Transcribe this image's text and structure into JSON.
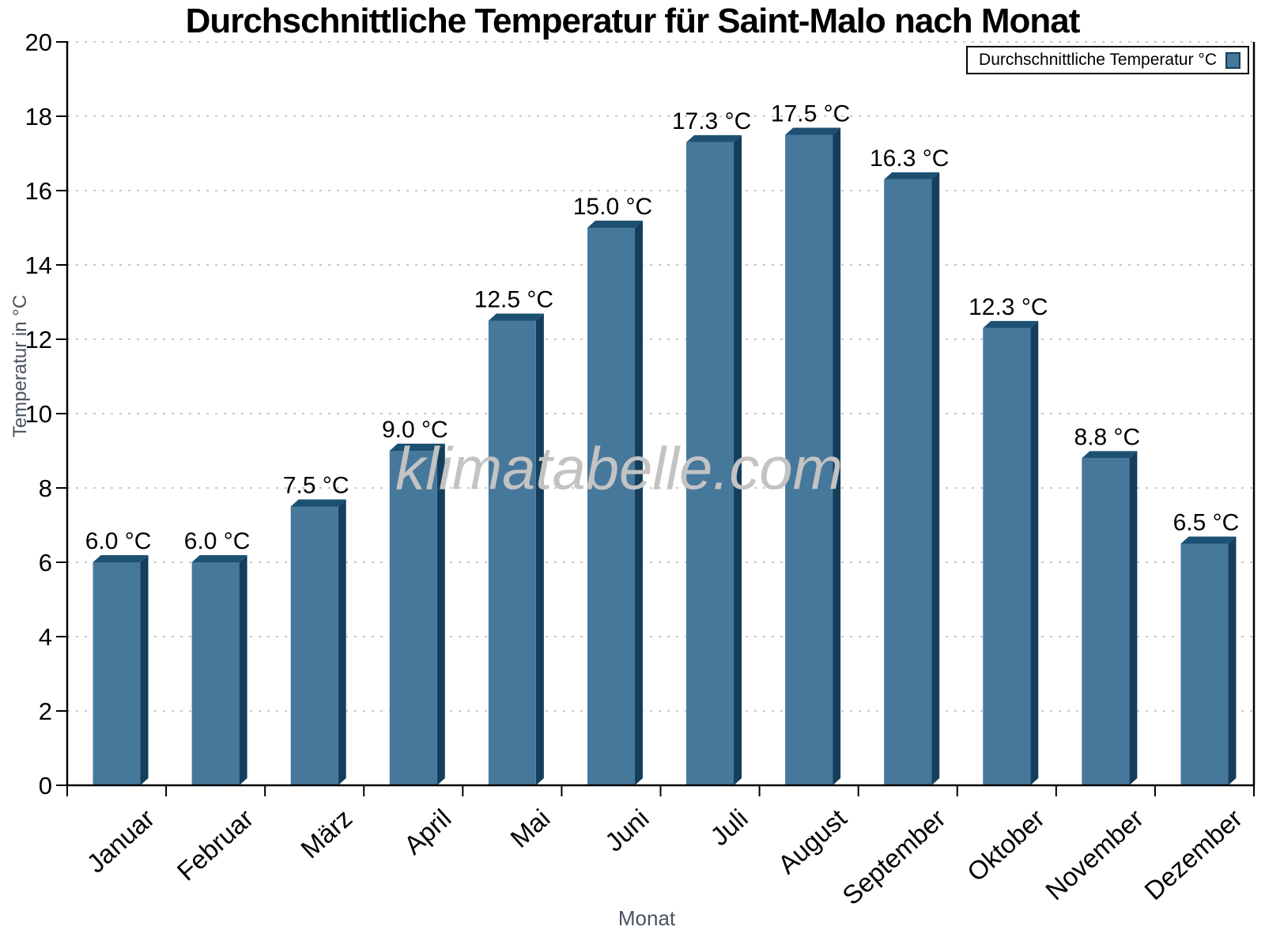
{
  "title": "Durchschnittliche Temperatur für Saint-Malo nach Monat",
  "watermark": "klimatabelle.com",
  "legend": {
    "label": "Durchschnittliche Temperatur °C"
  },
  "axes": {
    "x_label": "Monat",
    "y_label": "Temperatur in °C"
  },
  "chart_data": {
    "type": "bar",
    "title": "Durchschnittliche Temperatur für Saint-Malo nach Monat",
    "categories": [
      "Januar",
      "Februar",
      "März",
      "April",
      "Mai",
      "Juni",
      "Juli",
      "August",
      "September",
      "Oktober",
      "November",
      "Dezember"
    ],
    "values": [
      6.0,
      6.0,
      7.5,
      9.0,
      12.5,
      15.0,
      17.3,
      17.5,
      16.3,
      12.3,
      8.8,
      6.5
    ],
    "value_labels": [
      "6.0 °C",
      "6.0 °C",
      "7.5 °C",
      "9.0 °C",
      "12.5 °C",
      "15.0 °C",
      "17.3 °C",
      "17.5 °C",
      "16.3 °C",
      "12.3 °C",
      "8.8 °C",
      "6.5 °C"
    ],
    "xlabel": "Monat",
    "ylabel": "Temperatur in °C",
    "ylim": [
      0,
      20
    ],
    "ytick_step": 2,
    "legend_label": "Durchschnittliche Temperatur °C",
    "legend_position": "top-right",
    "grid": true,
    "colors": {
      "bar_front": "#46789c",
      "bar_side": "#143e5c",
      "bar_top": "#1d5174",
      "grid": "#c9c9c9",
      "axis": "#000000",
      "tick_label": "#000000",
      "axis_title": "#4a545e",
      "watermark": "#c3c3c3"
    }
  }
}
